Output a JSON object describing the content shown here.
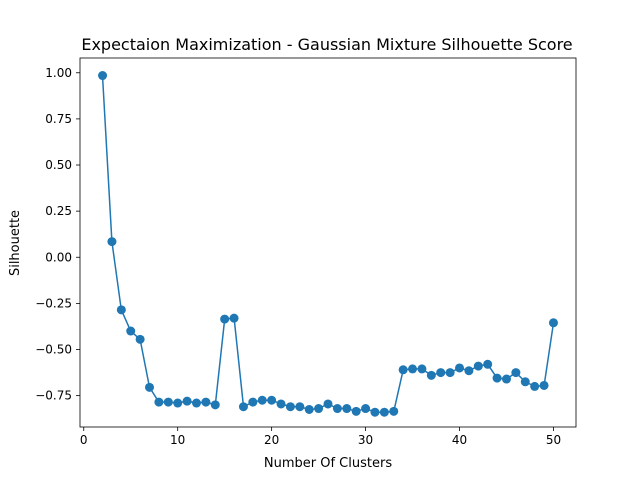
{
  "chart_data": {
    "type": "line",
    "title": "Expectaion Maximization - Gaussian Mixture Silhouette Score",
    "xlabel": "Number Of Clusters",
    "ylabel": "Silhouette",
    "xlim": [
      -0.4,
      52.4
    ],
    "ylim": [
      -0.92,
      1.08
    ],
    "xticks": [
      0,
      10,
      20,
      30,
      40,
      50
    ],
    "yticks": [
      1.0,
      0.75,
      0.5,
      0.25,
      0.0,
      -0.25,
      -0.5,
      -0.75
    ],
    "ytick_labels": [
      "1.00",
      "0.75",
      "0.50",
      "0.25",
      "0.00",
      "−0.25",
      "−0.50",
      "−0.75"
    ],
    "grid": false,
    "color": "#1f77b4",
    "marker": "circle",
    "x": [
      2,
      3,
      4,
      5,
      6,
      7,
      8,
      9,
      10,
      11,
      12,
      13,
      14,
      15,
      16,
      17,
      18,
      19,
      20,
      21,
      22,
      23,
      24,
      25,
      26,
      27,
      28,
      29,
      30,
      31,
      32,
      33,
      34,
      35,
      36,
      37,
      38,
      39,
      40,
      41,
      42,
      43,
      44,
      45,
      46,
      47,
      48,
      49,
      50
    ],
    "y": [
      0.985,
      0.085,
      -0.285,
      -0.4,
      -0.445,
      -0.705,
      -0.785,
      -0.785,
      -0.79,
      -0.78,
      -0.79,
      -0.785,
      -0.8,
      -0.335,
      -0.33,
      -0.81,
      -0.785,
      -0.775,
      -0.775,
      -0.795,
      -0.81,
      -0.81,
      -0.825,
      -0.82,
      -0.795,
      -0.82,
      -0.82,
      -0.835,
      -0.82,
      -0.84,
      -0.84,
      -0.835,
      -0.61,
      -0.605,
      -0.605,
      -0.64,
      -0.625,
      -0.625,
      -0.6,
      -0.615,
      -0.59,
      -0.58,
      -0.655,
      -0.66,
      -0.625,
      -0.675,
      -0.7,
      -0.695,
      -0.355
    ]
  }
}
